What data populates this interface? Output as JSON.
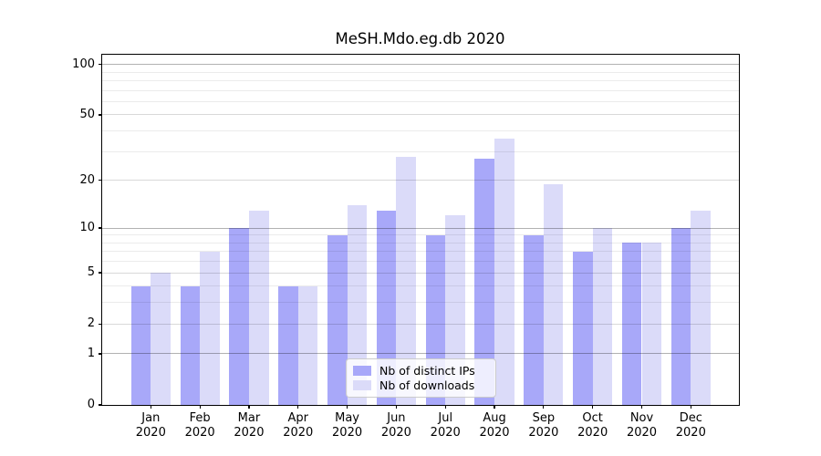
{
  "chart_data": {
    "type": "bar",
    "title": "MeSH.Mdo.eg.db 2020",
    "categories": [
      "Jan 2020",
      "Feb 2020",
      "Mar 2020",
      "Apr 2020",
      "May 2020",
      "Jun 2020",
      "Jul 2020",
      "Aug 2020",
      "Sep 2020",
      "Oct 2020",
      "Nov 2020",
      "Dec 2020"
    ],
    "series": [
      {
        "name": "Nb of distinct IPs",
        "color": "#a8a8f9",
        "values": [
          4,
          4,
          10,
          4,
          9,
          13,
          9,
          27,
          9,
          7,
          8,
          10
        ]
      },
      {
        "name": "Nb of downloads",
        "color": "#dbdbf9",
        "values": [
          5,
          7,
          13,
          4,
          14,
          28,
          12,
          36,
          19,
          10,
          8,
          13
        ]
      }
    ],
    "yscale": "log1p",
    "ylim": [
      0,
      115
    ],
    "yticks": [
      0,
      1,
      2,
      5,
      10,
      20,
      50,
      100
    ],
    "grid": "horizontal, log minor gridlines",
    "legend_position": "lower center inside plot",
    "axis_color": "#000000"
  }
}
